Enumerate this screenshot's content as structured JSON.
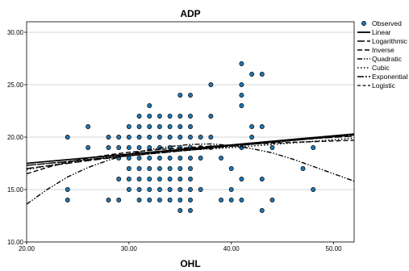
{
  "chart_data": {
    "type": "scatter",
    "title": "ADP",
    "xlabel": "OHL",
    "ylabel": "",
    "xlim": [
      20,
      52
    ],
    "ylim": [
      10,
      31
    ],
    "x_ticks": [
      "20.00",
      "30.00",
      "40.00",
      "50.00"
    ],
    "x_tick_values": [
      20,
      30,
      40,
      50
    ],
    "y_ticks": [
      "10.00",
      "15.00",
      "20.00",
      "25.00",
      "30.00"
    ],
    "y_tick_values": [
      10,
      15,
      20,
      25,
      30
    ],
    "grid": "horizontal",
    "legend_position": "right",
    "legend": [
      "Observed",
      "Linear",
      "Logarithmic",
      "Inverse",
      "Quadratic",
      "Cubic",
      "Exponential",
      "Logistic"
    ],
    "observed": {
      "name": "Observed",
      "color": "#1f77b4",
      "points": [
        [
          24,
          20
        ],
        [
          24,
          15
        ],
        [
          24,
          14
        ],
        [
          26,
          21
        ],
        [
          26,
          19
        ],
        [
          28,
          20
        ],
        [
          28,
          19
        ],
        [
          28,
          14
        ],
        [
          29,
          20
        ],
        [
          29,
          19
        ],
        [
          29,
          18
        ],
        [
          29,
          16
        ],
        [
          29,
          14
        ],
        [
          30,
          21
        ],
        [
          30,
          20
        ],
        [
          30,
          19
        ],
        [
          30,
          18
        ],
        [
          30,
          17
        ],
        [
          30,
          16
        ],
        [
          30,
          15
        ],
        [
          31,
          22
        ],
        [
          31,
          21
        ],
        [
          31,
          20
        ],
        [
          31,
          19
        ],
        [
          31,
          18
        ],
        [
          31,
          17
        ],
        [
          31,
          16
        ],
        [
          31,
          15
        ],
        [
          31,
          14
        ],
        [
          32,
          23
        ],
        [
          32,
          22
        ],
        [
          32,
          21
        ],
        [
          32,
          20
        ],
        [
          32,
          19
        ],
        [
          32,
          18
        ],
        [
          32,
          17
        ],
        [
          32,
          16
        ],
        [
          32,
          15
        ],
        [
          32,
          14
        ],
        [
          33,
          22
        ],
        [
          33,
          21
        ],
        [
          33,
          20
        ],
        [
          33,
          19
        ],
        [
          33,
          18
        ],
        [
          33,
          17
        ],
        [
          33,
          16
        ],
        [
          33,
          15
        ],
        [
          33,
          14
        ],
        [
          34,
          22
        ],
        [
          34,
          21
        ],
        [
          34,
          20
        ],
        [
          34,
          19
        ],
        [
          34,
          18
        ],
        [
          34,
          17
        ],
        [
          34,
          16
        ],
        [
          34,
          15
        ],
        [
          34,
          14
        ],
        [
          35,
          24
        ],
        [
          35,
          22
        ],
        [
          35,
          21
        ],
        [
          35,
          20
        ],
        [
          35,
          19
        ],
        [
          35,
          18
        ],
        [
          35,
          17
        ],
        [
          35,
          16
        ],
        [
          35,
          15
        ],
        [
          35,
          14
        ],
        [
          35,
          13
        ],
        [
          36,
          24
        ],
        [
          36,
          22
        ],
        [
          36,
          21
        ],
        [
          36,
          20
        ],
        [
          36,
          19
        ],
        [
          36,
          18
        ],
        [
          36,
          17
        ],
        [
          36,
          16
        ],
        [
          36,
          15
        ],
        [
          36,
          14
        ],
        [
          36,
          13
        ],
        [
          37,
          20
        ],
        [
          37,
          19
        ],
        [
          37,
          18
        ],
        [
          37,
          15
        ],
        [
          38,
          25
        ],
        [
          38,
          22
        ],
        [
          38,
          20
        ],
        [
          38,
          19
        ],
        [
          39,
          18
        ],
        [
          39,
          14
        ],
        [
          40,
          17
        ],
        [
          40,
          15
        ],
        [
          40,
          14
        ],
        [
          41,
          27
        ],
        [
          41,
          25
        ],
        [
          41,
          24
        ],
        [
          41,
          23
        ],
        [
          41,
          19
        ],
        [
          41,
          16
        ],
        [
          41,
          14
        ],
        [
          42,
          26
        ],
        [
          42,
          21
        ],
        [
          42,
          20
        ],
        [
          43,
          26
        ],
        [
          43,
          21
        ],
        [
          43,
          16
        ],
        [
          43,
          13
        ],
        [
          44,
          19
        ],
        [
          44,
          14
        ],
        [
          47,
          17
        ],
        [
          48,
          19
        ],
        [
          48,
          15
        ]
      ]
    },
    "fit_lines": [
      {
        "name": "Linear",
        "style": "solid",
        "points": [
          [
            20,
            17.5
          ],
          [
            52,
            20.3
          ]
        ]
      },
      {
        "name": "Logarithmic",
        "style": "long-dash",
        "points": [
          [
            20,
            17.0
          ],
          [
            24,
            17.5
          ],
          [
            28,
            18.0
          ],
          [
            32,
            18.45
          ],
          [
            36,
            18.85
          ],
          [
            40,
            19.2
          ],
          [
            44,
            19.55
          ],
          [
            48,
            19.85
          ],
          [
            52,
            20.1
          ]
        ]
      },
      {
        "name": "Inverse",
        "style": "dash",
        "points": [
          [
            20,
            16.5
          ],
          [
            22,
            17.1
          ],
          [
            24,
            17.6
          ],
          [
            26,
            18.0
          ],
          [
            28,
            18.3
          ],
          [
            30,
            18.55
          ],
          [
            34,
            18.9
          ],
          [
            40,
            19.25
          ],
          [
            46,
            19.5
          ],
          [
            52,
            19.7
          ]
        ]
      },
      {
        "name": "Quadratic",
        "style": "dash-dot-dot",
        "points": [
          [
            20,
            13.6
          ],
          [
            22,
            15.0
          ],
          [
            24,
            16.2
          ],
          [
            26,
            17.1
          ],
          [
            28,
            17.8
          ],
          [
            30,
            18.4
          ],
          [
            32,
            18.8
          ],
          [
            34,
            19.1
          ],
          [
            36,
            19.3
          ],
          [
            38,
            19.35
          ],
          [
            40,
            19.2
          ],
          [
            42,
            18.9
          ],
          [
            44,
            18.5
          ],
          [
            46,
            17.9
          ],
          [
            48,
            17.2
          ],
          [
            50,
            16.5
          ],
          [
            52,
            15.8
          ]
        ]
      },
      {
        "name": "Cubic",
        "style": "dot",
        "points": [
          [
            20,
            16.9
          ],
          [
            24,
            17.6
          ],
          [
            28,
            18.1
          ],
          [
            32,
            18.5
          ],
          [
            36,
            18.8
          ],
          [
            40,
            19.0
          ],
          [
            44,
            19.3
          ],
          [
            48,
            19.6
          ],
          [
            52,
            19.9
          ]
        ]
      },
      {
        "name": "Exponential",
        "style": "dash-dot",
        "points": [
          [
            20,
            17.3
          ],
          [
            26,
            17.85
          ],
          [
            32,
            18.4
          ],
          [
            38,
            18.95
          ],
          [
            44,
            19.5
          ],
          [
            52,
            20.2
          ]
        ]
      },
      {
        "name": "Logistic",
        "style": "short-dash",
        "points": [
          [
            20,
            17.3
          ],
          [
            26,
            17.85
          ],
          [
            32,
            18.4
          ],
          [
            38,
            18.95
          ],
          [
            44,
            19.5
          ],
          [
            52,
            20.2
          ]
        ]
      }
    ]
  }
}
